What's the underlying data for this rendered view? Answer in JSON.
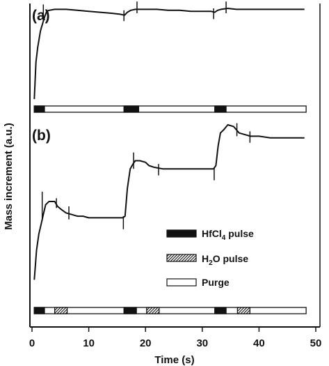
{
  "chart_data": {
    "type": "line",
    "xlabel": "Time (s)",
    "ylabel": "Mass increment (a.u.)",
    "xlim": [
      0,
      50
    ],
    "x_ticks": [
      "0",
      "10",
      "20",
      "30",
      "40",
      "50"
    ],
    "panel_labels": [
      "(a)",
      "(b)"
    ],
    "legend": [
      {
        "key": "hfcl4",
        "prefix": "HfCl",
        "sub": "4",
        "suffix": " pulse",
        "fill": "solid"
      },
      {
        "key": "h2o",
        "prefix": "H",
        "sub": "2",
        "suffix": "O pulse",
        "fill": "hatched"
      },
      {
        "key": "purge",
        "prefix": "Purge",
        "sub": "",
        "suffix": "",
        "fill": "open"
      }
    ],
    "panels": [
      {
        "label": "(a)",
        "ylim": [
          0,
          1
        ],
        "series": [
          {
            "values": [
              [
                0.4,
                0.02
              ],
              [
                0.7,
                0.4
              ],
              [
                1.0,
                0.55
              ],
              [
                1.5,
                0.72
              ],
              [
                1.9,
                0.8
              ],
              [
                2.2,
                0.86
              ],
              [
                2.6,
                0.92
              ],
              [
                3.0,
                0.93
              ],
              [
                4.0,
                0.94
              ],
              [
                6.0,
                0.94
              ],
              [
                8.0,
                0.93
              ],
              [
                10.0,
                0.92
              ],
              [
                12.0,
                0.91
              ],
              [
                14.0,
                0.9
              ],
              [
                15.5,
                0.89
              ],
              [
                16.3,
                0.88
              ],
              [
                16.8,
                0.91
              ],
              [
                17.4,
                0.93
              ],
              [
                18.2,
                0.94
              ],
              [
                20.0,
                0.94
              ],
              [
                22.0,
                0.94
              ],
              [
                24.0,
                0.93
              ],
              [
                26.0,
                0.93
              ],
              [
                28.0,
                0.92
              ],
              [
                30.0,
                0.92
              ],
              [
                31.5,
                0.92
              ],
              [
                32.2,
                0.91
              ],
              [
                32.7,
                0.93
              ],
              [
                33.3,
                0.94
              ],
              [
                34.5,
                0.95
              ],
              [
                36.0,
                0.94
              ],
              [
                38.0,
                0.94
              ],
              [
                40.0,
                0.94
              ],
              [
                42.0,
                0.94
              ],
              [
                44.0,
                0.94
              ],
              [
                46.0,
                0.94
              ],
              [
                48.0,
                0.94
              ]
            ]
          }
        ],
        "spikes": [
          {
            "x": 2.0,
            "top": 0.99,
            "bottom": 0.85
          },
          {
            "x": 16.2,
            "top": 0.93,
            "bottom": 0.82
          },
          {
            "x": 18.5,
            "top": 1.02,
            "bottom": 0.9
          },
          {
            "x": 32.0,
            "top": 0.95,
            "bottom": 0.84
          },
          {
            "x": 34.2,
            "top": 1.02,
            "bottom": 0.9
          }
        ],
        "pulses": {
          "range": [
            0.4,
            48.3
          ],
          "hfcl4": [
            [
              0.4,
              2.2
            ],
            [
              16.2,
              18.8
            ],
            [
              32.2,
              34.2
            ]
          ],
          "h2o": []
        }
      },
      {
        "label": "(b)",
        "ylim": [
          0,
          1
        ],
        "series": [
          {
            "values": [
              [
                0.4,
                0.02
              ],
              [
                0.8,
                0.2
              ],
              [
                1.2,
                0.3
              ],
              [
                1.6,
                0.36
              ],
              [
                2.0,
                0.42
              ],
              [
                2.4,
                0.48
              ],
              [
                3.0,
                0.5
              ],
              [
                4.0,
                0.5
              ],
              [
                4.5,
                0.47
              ],
              [
                5.2,
                0.45
              ],
              [
                6.0,
                0.43
              ],
              [
                7.0,
                0.42
              ],
              [
                8.0,
                0.41
              ],
              [
                9.0,
                0.41
              ],
              [
                10.0,
                0.4
              ],
              [
                12.0,
                0.4
              ],
              [
                14.0,
                0.4
              ],
              [
                16.0,
                0.4
              ],
              [
                16.4,
                0.41
              ],
              [
                16.8,
                0.58
              ],
              [
                17.3,
                0.7
              ],
              [
                17.8,
                0.73
              ],
              [
                18.2,
                0.75
              ],
              [
                19.0,
                0.75
              ],
              [
                20.0,
                0.74
              ],
              [
                20.6,
                0.72
              ],
              [
                21.5,
                0.71
              ],
              [
                23.0,
                0.7
              ],
              [
                25.0,
                0.7
              ],
              [
                27.0,
                0.7
              ],
              [
                29.0,
                0.7
              ],
              [
                31.0,
                0.7
              ],
              [
                32.0,
                0.7
              ],
              [
                32.4,
                0.72
              ],
              [
                32.8,
                0.84
              ],
              [
                33.2,
                0.92
              ],
              [
                33.8,
                0.94
              ],
              [
                34.5,
                0.97
              ],
              [
                35.5,
                0.96
              ],
              [
                36.5,
                0.92
              ],
              [
                37.5,
                0.91
              ],
              [
                38.5,
                0.9
              ],
              [
                40.0,
                0.9
              ],
              [
                42.0,
                0.89
              ],
              [
                44.0,
                0.89
              ],
              [
                46.0,
                0.89
              ],
              [
                48.0,
                0.89
              ]
            ]
          }
        ],
        "spikes": [
          {
            "x": 1.8,
            "top": 0.56,
            "bottom": 0.38
          },
          {
            "x": 4.3,
            "top": 0.52,
            "bottom": 0.46
          },
          {
            "x": 6.5,
            "top": 0.47,
            "bottom": 0.39
          },
          {
            "x": 16.1,
            "top": 0.41,
            "bottom": 0.33
          },
          {
            "x": 17.9,
            "top": 0.8,
            "bottom": 0.7
          },
          {
            "x": 22.3,
            "top": 0.73,
            "bottom": 0.66
          },
          {
            "x": 32.1,
            "top": 0.71,
            "bottom": 0.63
          },
          {
            "x": 36.1,
            "top": 0.98,
            "bottom": 0.9
          },
          {
            "x": 38.4,
            "top": 0.93,
            "bottom": 0.86
          }
        ],
        "pulses": {
          "range": [
            0.4,
            48.3
          ],
          "hfcl4": [
            [
              0.4,
              2.2
            ],
            [
              16.2,
              18.4
            ],
            [
              32.2,
              34.2
            ]
          ],
          "h2o": [
            [
              4.0,
              6.2
            ],
            [
              20.2,
              22.4
            ],
            [
              36.2,
              38.4
            ]
          ]
        }
      }
    ]
  }
}
